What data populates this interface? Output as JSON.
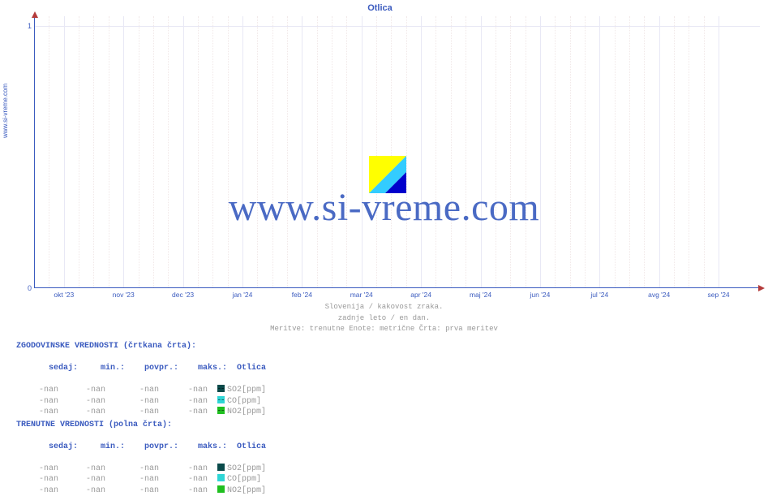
{
  "chart": {
    "title": "Otlica",
    "side_label": "www.si-vreme.com",
    "watermark": "www.si-vreme.com",
    "background_color": "#ffffff",
    "axis_color": "#3b5bbf",
    "arrow_color": "#b43b3b",
    "grid_major_color": "#e8e8f5",
    "grid_minor_color": "#f1e8e8",
    "title_fontsize": 11,
    "label_fontsize": 9,
    "ylim": [
      0,
      1
    ],
    "yticks": [
      {
        "v": 0,
        "label": "0"
      },
      {
        "v": 1,
        "label": "1"
      }
    ],
    "xticks": [
      {
        "pos": 0.04,
        "label": "okt '23"
      },
      {
        "pos": 0.122,
        "label": "nov '23"
      },
      {
        "pos": 0.204,
        "label": "dec '23"
      },
      {
        "pos": 0.286,
        "label": "jan '24"
      },
      {
        "pos": 0.368,
        "label": "feb '24"
      },
      {
        "pos": 0.45,
        "label": "mar '24"
      },
      {
        "pos": 0.532,
        "label": "apr '24"
      },
      {
        "pos": 0.614,
        "label": "maj '24"
      },
      {
        "pos": 0.696,
        "label": "jun '24"
      },
      {
        "pos": 0.778,
        "label": "jul '24"
      },
      {
        "pos": 0.86,
        "label": "avg '24"
      },
      {
        "pos": 0.942,
        "label": "sep '24"
      }
    ],
    "minor_per_major": 4,
    "caption": {
      "line1": "Slovenija / kakovost zraka.",
      "line2": "zadnje leto / en dan.",
      "line3": "Meritve: trenutne  Enote: metrične  Črta: prva meritev"
    }
  },
  "tables": {
    "hist": {
      "title": "ZGODOVINSKE VREDNOSTI (črtkana črta):",
      "headers": {
        "sedaj": "sedaj:",
        "min": "min.:",
        "povpr": "povpr.:",
        "maks": "maks.:",
        "loc": "Otlica"
      },
      "rows": [
        {
          "sedaj": "-nan",
          "min": "-nan",
          "povpr": "-nan",
          "maks": "-nan",
          "param": "SO2[ppm]",
          "color": "#0a4a4a"
        },
        {
          "sedaj": "-nan",
          "min": "-nan",
          "povpr": "-nan",
          "maks": "-nan",
          "param": "CO[ppm]",
          "color": "#2fd6d6"
        },
        {
          "sedaj": "-nan",
          "min": "-nan",
          "povpr": "-nan",
          "maks": "-nan",
          "param": "NO2[ppm]",
          "color": "#1fbf1f"
        }
      ]
    },
    "curr": {
      "title": "TRENUTNE VREDNOSTI (polna črta):",
      "headers": {
        "sedaj": "sedaj:",
        "min": "min.:",
        "povpr": "povpr.:",
        "maks": "maks.:",
        "loc": "Otlica"
      },
      "rows": [
        {
          "sedaj": "-nan",
          "min": "-nan",
          "povpr": "-nan",
          "maks": "-nan",
          "param": "SO2[ppm]",
          "color": "#0a4a4a"
        },
        {
          "sedaj": "-nan",
          "min": "-nan",
          "povpr": "-nan",
          "maks": "-nan",
          "param": "CO[ppm]",
          "color": "#2fd6d6"
        },
        {
          "sedaj": "-nan",
          "min": "-nan",
          "povpr": "-nan",
          "maks": "-nan",
          "param": "NO2[ppm]",
          "color": "#1fbf1f"
        }
      ]
    }
  },
  "logo": {
    "colors": {
      "yellow": "#ffff00",
      "cyan": "#33ccff",
      "blue": "#0000cc"
    }
  }
}
